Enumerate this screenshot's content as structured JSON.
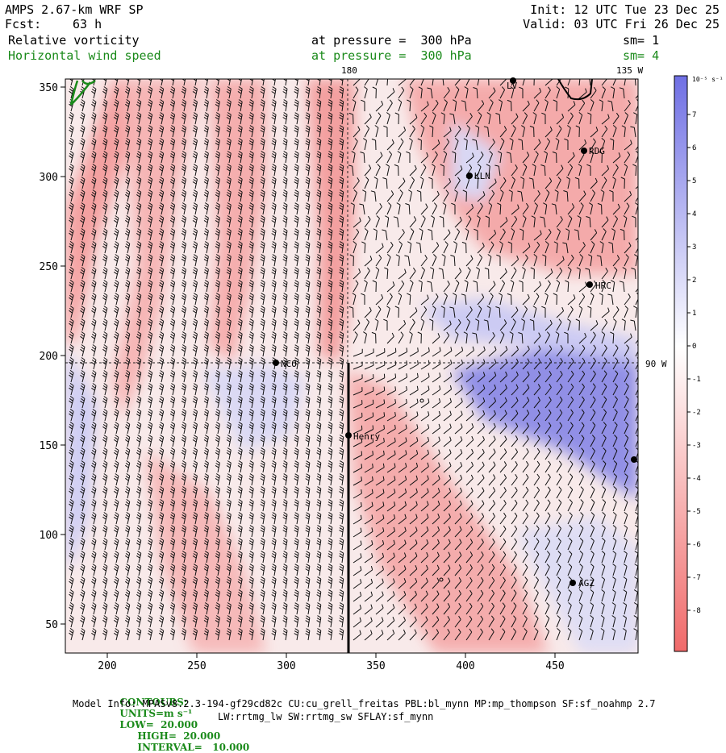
{
  "header": {
    "model": "AMPS 2.67-km WRF SP",
    "init": "Init: 12 UTC Tue 23 Dec 25",
    "fcst_label": "Fcst:",
    "fcst_value": "63 h",
    "valid": "Valid: 03 UTC Fri 26 Dec 25",
    "field1_name": "Relative vorticity",
    "field1_level": "at pressure =  300 hPa",
    "field1_sm": "sm= 1",
    "field2_name": "Horizontal wind speed",
    "field2_level": "at pressure =  300 hPa",
    "field2_sm": "sm= 4"
  },
  "map": {
    "x_ticks": [
      "200",
      "250",
      "300",
      "350",
      "400",
      "450"
    ],
    "y_ticks": [
      "50",
      "100",
      "150",
      "200",
      "250",
      "300",
      "350"
    ],
    "lon_labels": [
      "180",
      "135 W",
      "90 W"
    ],
    "stations": [
      "LV",
      "RDG",
      "KLN",
      "HRC",
      "NCO",
      "Henry",
      "AGZ"
    ],
    "colors": {
      "positive": "#f07070",
      "negative": "#7a7ae8",
      "contour": "#1a8a1a"
    }
  },
  "colorbar": {
    "units": "10⁻⁵ s⁻¹",
    "labels": [
      "7",
      "6",
      "5",
      "4",
      "3",
      "2",
      "1",
      "0",
      "-1",
      "-2",
      "-3",
      "-4",
      "-5",
      "-6",
      "-7",
      "-8"
    ]
  },
  "footer": {
    "contours_label": "CONTOURS:",
    "units": "UNITS=m s⁻¹",
    "low": "LOW=  20.000",
    "high": "HIGH=  20.000",
    "interval": "INTERVAL=   10.000",
    "model_info": "Model Info: MPASv8.2.3-194-gf29cd82c CU:cu_grell_freitas PBL:bl_mynn MP:mp_thompson SF:sf_noahmp 2.7",
    "model_info2": "LW:rrtmg_lw SW:rrtmg_sw SFLAY:sf_mynn"
  }
}
